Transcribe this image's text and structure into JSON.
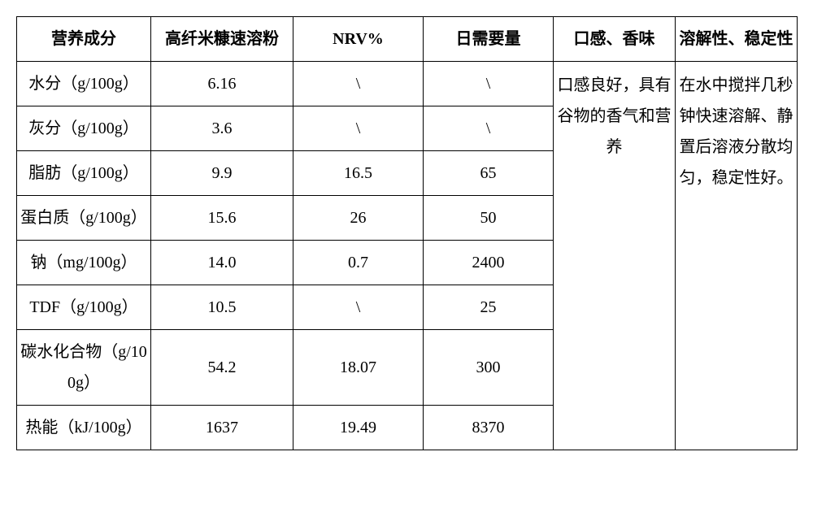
{
  "table": {
    "columns": [
      "营养成分",
      "高纤米糠速溶粉",
      "NRV%",
      "日需要量",
      "口感、香味",
      "溶解性、稳定性"
    ],
    "rows": [
      {
        "label": "水分（g/100g）",
        "value": "6.16",
        "nrv": "\\",
        "req": "\\"
      },
      {
        "label": "灰分（g/100g）",
        "value": "3.6",
        "nrv": "\\",
        "req": "\\"
      },
      {
        "label": "脂肪（g/100g）",
        "value": "9.9",
        "nrv": "16.5",
        "req": "65"
      },
      {
        "label": "蛋白质（g/100g）",
        "value": "15.6",
        "nrv": "26",
        "req": "50"
      },
      {
        "label": "钠（mg/100g）",
        "value": "14.0",
        "nrv": "0.7",
        "req": "2400"
      },
      {
        "label": "TDF（g/100g）",
        "value": "10.5",
        "nrv": "\\",
        "req": "25"
      },
      {
        "label": "碳水化合物（g/100g）",
        "value": "54.2",
        "nrv": "18.07",
        "req": "300"
      },
      {
        "label": "热能（kJ/100g）",
        "value": "1637",
        "nrv": "19.49",
        "req": "8370"
      }
    ],
    "taste_text": "口感良好，具有谷物的香气和营养",
    "solubility_text": "在水中搅拌几秒钟快速溶解、静置后溶液分散均匀，稳定性好。",
    "border_color": "#000000",
    "background_color": "#ffffff",
    "font_size": 20,
    "font_family": "SimSun"
  }
}
